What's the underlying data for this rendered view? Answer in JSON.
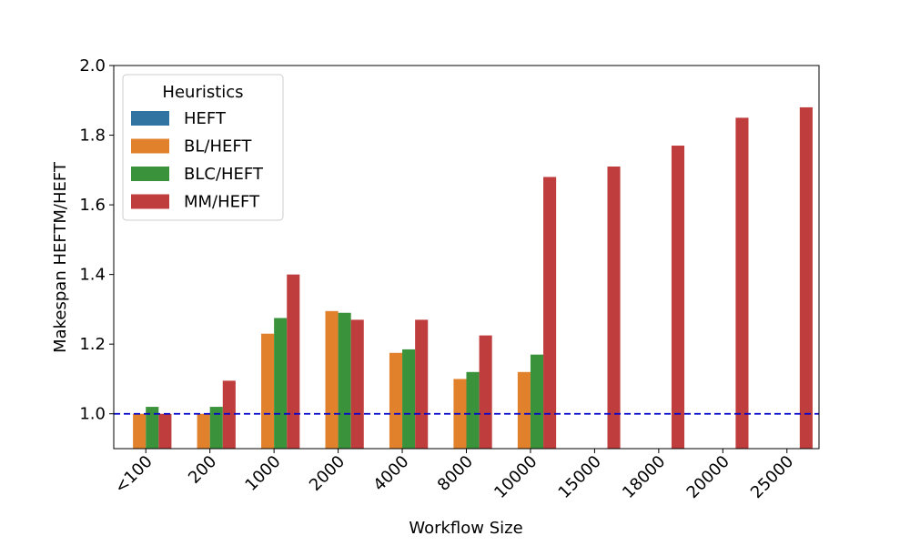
{
  "chart_data": {
    "type": "bar",
    "xlabel": "Workflow Size",
    "ylabel": "Makespan HEFTM/HEFT",
    "categories": [
      "<100",
      "200",
      "1000",
      "2000",
      "4000",
      "8000",
      "10000",
      "15000",
      "18000",
      "20000",
      "25000"
    ],
    "ylim": [
      0.9,
      2.0
    ],
    "yticks": [
      "1.0",
      "1.2",
      "1.4",
      "1.6",
      "1.8",
      "2.0"
    ],
    "grid": false,
    "reference_line": {
      "y": 1.0,
      "style": "dashed",
      "color": "#0000cc"
    },
    "legend": {
      "title": "Heuristics",
      "placement": "top-left"
    },
    "series": [
      {
        "name": "HEFT",
        "color": "#3274a1",
        "values": [
          null,
          null,
          null,
          null,
          null,
          null,
          null,
          null,
          null,
          null,
          null
        ]
      },
      {
        "name": "BL/HEFT",
        "color": "#e1812c",
        "values": [
          1.0,
          1.0,
          1.23,
          1.295,
          1.175,
          1.1,
          1.12,
          null,
          null,
          null,
          null
        ]
      },
      {
        "name": "BLC/HEFT",
        "color": "#3a923a",
        "values": [
          1.02,
          1.02,
          1.275,
          1.29,
          1.185,
          1.12,
          1.17,
          null,
          null,
          null,
          null
        ]
      },
      {
        "name": "MM/HEFT",
        "color": "#c03d3e",
        "values": [
          1.0,
          1.095,
          1.4,
          1.27,
          1.27,
          1.225,
          1.68,
          1.71,
          1.77,
          1.85,
          1.88
        ]
      }
    ]
  }
}
